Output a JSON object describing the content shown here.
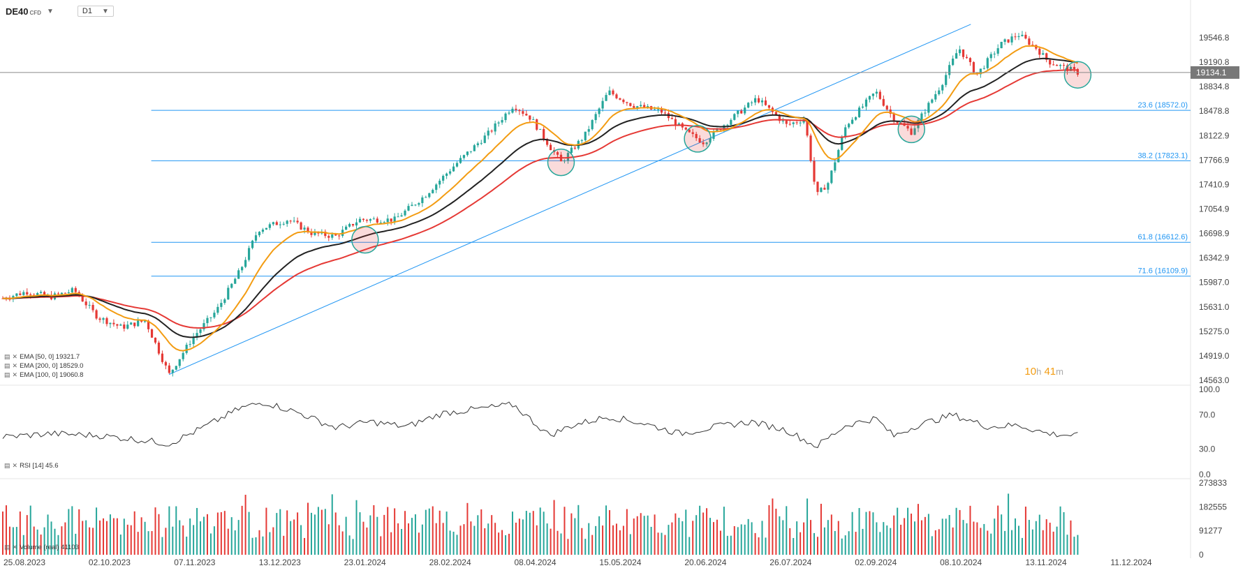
{
  "header": {
    "symbol": "DE40",
    "symbol_type": "CFD",
    "timeframe": "D1"
  },
  "indicators": {
    "ema50": "EMA [50, 0] 19321.7",
    "ema200": "EMA [200, 0] 18529.0",
    "ema100": "EMA [100, 0] 19060.8",
    "rsi": "RSI [14] 45.6",
    "volume": "Volume (real) 41103"
  },
  "timer": {
    "hours": "10",
    "h_unit": "h",
    "minutes": "41",
    "m_unit": "m"
  },
  "colors": {
    "up": "#26a69a",
    "down": "#e53935",
    "ema50": "#f39c12",
    "ema100": "#222222",
    "ema200": "#e53935",
    "fib": "#2196f3",
    "trend": "#2196f3",
    "price_tag": "#787878"
  },
  "chart_data": {
    "type": "candlestick",
    "current_price": "19134.1",
    "price_axis_ticks": [
      "19546.8",
      "19190.8",
      "18834.8",
      "18478.8",
      "18122.9",
      "17766.9",
      "17410.9",
      "17054.9",
      "16698.9",
      "16342.9",
      "15987.0",
      "15631.0",
      "15275.0",
      "14919.0",
      "14563.0"
    ],
    "price_range": [
      14563.0,
      19900.0
    ],
    "date_ticks": [
      "25.08.2023",
      "02.10.2023",
      "07.11.2023",
      "13.12.2023",
      "23.01.2024",
      "28.02.2024",
      "08.04.2024",
      "15.05.2024",
      "20.06.2024",
      "26.07.2024",
      "02.09.2024",
      "08.10.2024",
      "13.11.2024",
      "11.12.2024"
    ],
    "fib_levels": [
      {
        "label": "23.6 (18572.0)",
        "value": 18572.0
      },
      {
        "label": "38.2 (17823.1)",
        "value": 17823.1
      },
      {
        "label": "61.8 (16612.6)",
        "value": 16612.6
      },
      {
        "label": "71.6 (16109.9)",
        "value": 16109.9
      }
    ],
    "price_path": [
      {
        "t": 0,
        "p": 15780
      },
      {
        "t": 0.02,
        "p": 15880
      },
      {
        "t": 0.04,
        "p": 15800
      },
      {
        "t": 0.06,
        "p": 15900
      },
      {
        "t": 0.08,
        "p": 15500
      },
      {
        "t": 0.1,
        "p": 15350
      },
      {
        "t": 0.12,
        "p": 15450
      },
      {
        "t": 0.14,
        "p": 14650
      },
      {
        "t": 0.16,
        "p": 15200
      },
      {
        "t": 0.18,
        "p": 15600
      },
      {
        "t": 0.2,
        "p": 16200
      },
      {
        "t": 0.215,
        "p": 16800
      },
      {
        "t": 0.24,
        "p": 16950
      },
      {
        "t": 0.26,
        "p": 16750
      },
      {
        "t": 0.28,
        "p": 16700
      },
      {
        "t": 0.3,
        "p": 16950
      },
      {
        "t": 0.33,
        "p": 16950
      },
      {
        "t": 0.355,
        "p": 17300
      },
      {
        "t": 0.38,
        "p": 17750
      },
      {
        "t": 0.41,
        "p": 18250
      },
      {
        "t": 0.43,
        "p": 18650
      },
      {
        "t": 0.445,
        "p": 18450
      },
      {
        "t": 0.46,
        "p": 18050
      },
      {
        "t": 0.47,
        "p": 17800
      },
      {
        "t": 0.49,
        "p": 18200
      },
      {
        "t": 0.51,
        "p": 18850
      },
      {
        "t": 0.53,
        "p": 18650
      },
      {
        "t": 0.555,
        "p": 18550
      },
      {
        "t": 0.575,
        "p": 18250
      },
      {
        "t": 0.59,
        "p": 18100
      },
      {
        "t": 0.61,
        "p": 18400
      },
      {
        "t": 0.635,
        "p": 18750
      },
      {
        "t": 0.66,
        "p": 18350
      },
      {
        "t": 0.675,
        "p": 18450
      },
      {
        "t": 0.685,
        "p": 17300
      },
      {
        "t": 0.695,
        "p": 17500
      },
      {
        "t": 0.71,
        "p": 18350
      },
      {
        "t": 0.735,
        "p": 18850
      },
      {
        "t": 0.75,
        "p": 18450
      },
      {
        "t": 0.765,
        "p": 18250
      },
      {
        "t": 0.79,
        "p": 18950
      },
      {
        "t": 0.805,
        "p": 19500
      },
      {
        "t": 0.82,
        "p": 19100
      },
      {
        "t": 0.84,
        "p": 19550
      },
      {
        "t": 0.855,
        "p": 19700
      },
      {
        "t": 0.87,
        "p": 19500
      },
      {
        "t": 0.88,
        "p": 19300
      },
      {
        "t": 0.895,
        "p": 19200
      },
      {
        "t": 0.905,
        "p": 19134
      }
    ],
    "rsi_axis_ticks": [
      "100.0",
      "70.0",
      "30.0",
      "0.0"
    ],
    "rsi_path": [
      {
        "t": 0,
        "v": 44
      },
      {
        "t": 0.04,
        "v": 48
      },
      {
        "t": 0.08,
        "v": 46
      },
      {
        "t": 0.12,
        "v": 40
      },
      {
        "t": 0.14,
        "v": 36
      },
      {
        "t": 0.17,
        "v": 56
      },
      {
        "t": 0.2,
        "v": 78
      },
      {
        "t": 0.22,
        "v": 85
      },
      {
        "t": 0.25,
        "v": 72
      },
      {
        "t": 0.28,
        "v": 55
      },
      {
        "t": 0.31,
        "v": 62
      },
      {
        "t": 0.34,
        "v": 56
      },
      {
        "t": 0.37,
        "v": 72
      },
      {
        "t": 0.4,
        "v": 77
      },
      {
        "t": 0.43,
        "v": 82
      },
      {
        "t": 0.46,
        "v": 46
      },
      {
        "t": 0.48,
        "v": 58
      },
      {
        "t": 0.51,
        "v": 68
      },
      {
        "t": 0.54,
        "v": 60
      },
      {
        "t": 0.57,
        "v": 48
      },
      {
        "t": 0.6,
        "v": 56
      },
      {
        "t": 0.63,
        "v": 62
      },
      {
        "t": 0.66,
        "v": 52
      },
      {
        "t": 0.685,
        "v": 33
      },
      {
        "t": 0.71,
        "v": 58
      },
      {
        "t": 0.735,
        "v": 66
      },
      {
        "t": 0.75,
        "v": 45
      },
      {
        "t": 0.77,
        "v": 58
      },
      {
        "t": 0.8,
        "v": 70
      },
      {
        "t": 0.83,
        "v": 56
      },
      {
        "t": 0.855,
        "v": 58
      },
      {
        "t": 0.88,
        "v": 48
      },
      {
        "t": 0.905,
        "v": 45.6
      }
    ],
    "volume_axis_ticks": [
      "273833",
      "182555",
      "91277",
      "0"
    ],
    "volume_max": 273833
  }
}
